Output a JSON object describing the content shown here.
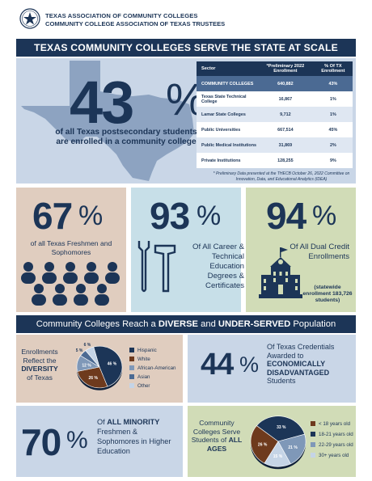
{
  "header": {
    "org_line1": "TEXAS ASSOCIATION OF COMMUNITY COLLEGES",
    "org_line2": "COMMUNITY COLLEGE ASSOCIATION OF TEXAS TRUSTEES",
    "banner": "TEXAS COMMUNITY COLLEGES SERVE THE STATE AT SCALE"
  },
  "stat43": {
    "number": "43",
    "pct": "%",
    "text": "of all Texas postsecondary students are enrolled in a community college"
  },
  "table": {
    "headers": [
      "Sector",
      "*Preliminary 2022 Enrollment",
      "% Of TX Enrollment"
    ],
    "rows": [
      [
        "COMMUNITY COLLEGES",
        "640,882",
        "43%"
      ],
      [
        "Texas State Technical College",
        "16,867",
        "1%"
      ],
      [
        "Lamar State Colleges",
        "9,712",
        "1%"
      ],
      [
        "Public Universities",
        "667,514",
        "45%"
      ],
      [
        "Public Medical Institutions",
        "31,869",
        "2%"
      ],
      [
        "Private Institutions",
        "128,255",
        "9%"
      ]
    ],
    "note": "* Preliminary Data presented at the THECB October 26, 2022 Committee on Innovation, Data, and Educational Analytics (IDEA)"
  },
  "stat67": {
    "number": "67",
    "pct": "%",
    "text": "of all Texas Freshmen and Sophomores"
  },
  "stat93": {
    "number": "93",
    "pct": "%",
    "text": "Of All Career & Technical Education Degrees & Certificates"
  },
  "stat94": {
    "number": "94",
    "pct": "%",
    "text": "Of All Dual Credit Enrollments",
    "sub": "(statewide enrollment 183,726 students)"
  },
  "banner2": {
    "pre": "Community Colleges Reach a ",
    "b1": "DIVERSE",
    "mid": " and ",
    "b2": "UNDER-SERVED",
    "post": " Population"
  },
  "diversity": {
    "label_pre": "Enrollments Reflect the ",
    "label_bold": "DIVERSITY",
    "label_post": " of Texas"
  },
  "stat44": {
    "number": "44",
    "pct": "%",
    "text_pre": "Of Texas Credentials Awarded to ",
    "text_bold": "ECONOMICALLY DISADVANTAGED",
    "text_post": " Students"
  },
  "stat70": {
    "number": "70",
    "pct": "%",
    "text_pre": "Of ",
    "text_bold": "ALL MINORITY",
    "text_post": " Freshmen & Sophomores in Higher Education"
  },
  "ages": {
    "label_pre": "Community Colleges Serve Students of ",
    "label_bold": "ALL AGES"
  },
  "colors": {
    "navy": "#1c3557",
    "brown": "#6e3a1d",
    "slate": "#4b6a93",
    "light": "#a9c0dc",
    "mid": "#7f98b8"
  },
  "chart_data": [
    {
      "type": "pie",
      "title": "Enrollments Reflect the DIVERSITY of Texas",
      "categories": [
        "Hispanic",
        "White",
        "African-American",
        "Asian",
        "Other"
      ],
      "values": [
        46,
        26,
        12,
        5,
        6
      ],
      "labels": [
        "46 %",
        "26 %",
        "12 %",
        "5 %",
        "6 %"
      ],
      "colors": [
        "#1c3557",
        "#6e3a1d",
        "#7f98b8",
        "#4b6a93",
        "#c5d4e6"
      ]
    },
    {
      "type": "pie",
      "title": "Community Colleges Serve Students of ALL AGES",
      "categories": [
        "< 18 years old",
        "18-21 years old",
        "22-29 years old",
        "30+ years old"
      ],
      "values": [
        26,
        33,
        21,
        15
      ],
      "labels": [
        "26 %",
        "33 %",
        "21 %",
        "15 %"
      ],
      "colors": [
        "#6e3a1d",
        "#1c3557",
        "#7f98b8",
        "#c5d4e6"
      ]
    }
  ]
}
